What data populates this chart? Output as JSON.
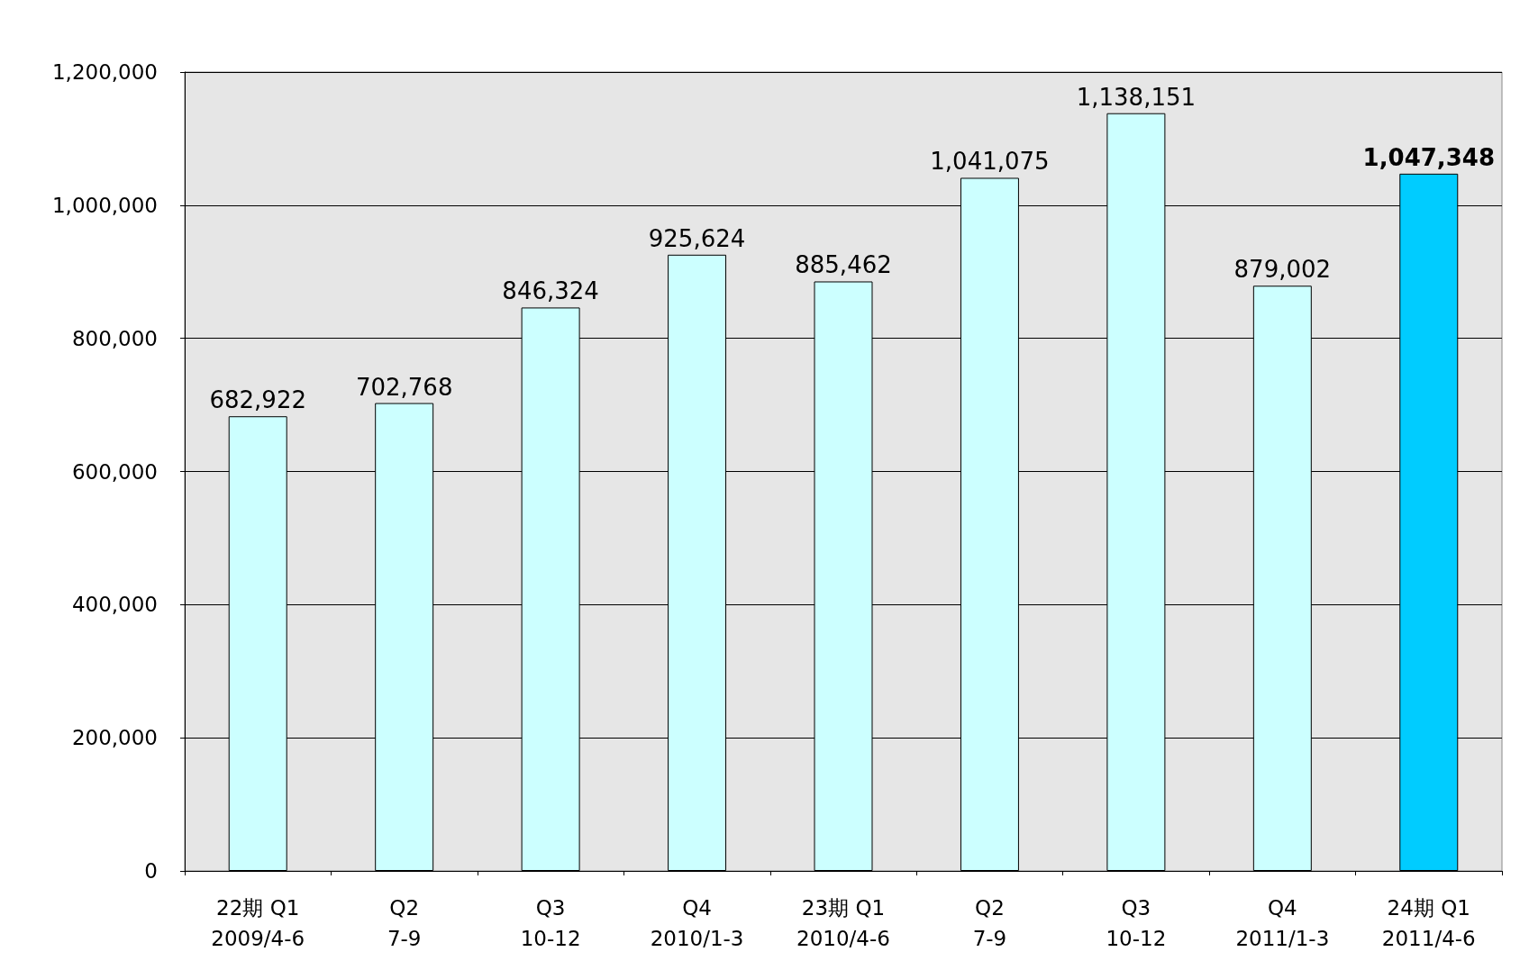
{
  "chart_data": {
    "type": "bar",
    "categories": [
      "22期 Q1\n2009/4-6",
      "Q2\n7-9",
      "Q3\n10-12",
      "Q4\n2010/1-3",
      "23期 Q1\n2010/4-6",
      "Q2\n7-9",
      "Q3\n10-12",
      "Q4\n2011/1-3",
      "24期 Q1\n2011/4-6"
    ],
    "values": [
      682922,
      702768,
      846324,
      925624,
      885462,
      1041075,
      1138151,
      879002,
      1047348
    ],
    "colors": [
      "#ccffff",
      "#ccffff",
      "#ccffff",
      "#ccffff",
      "#ccffff",
      "#ccffff",
      "#ccffff",
      "#ccffff",
      "#00ccff"
    ],
    "value_labels": [
      "682,922",
      "702,768",
      "846,324",
      "925,624",
      "885,462",
      "1,041,075",
      "1,138,151",
      "879,002",
      "1,047,348"
    ],
    "ylim": [
      0,
      1200000
    ],
    "yticks": [
      0,
      {
        "value": 200000,
        "label": "200,000"
      },
      {
        "value": 400000,
        "label": "400,000"
      },
      {
        "value": 600000,
        "label": "600,000"
      },
      {
        "value": 800000,
        "label": "800,000"
      },
      {
        "value": 1000000,
        "label": "1,000,000"
      },
      {
        "value": 1200000,
        "label": "1,200,000"
      }
    ],
    "grid": "y"
  }
}
